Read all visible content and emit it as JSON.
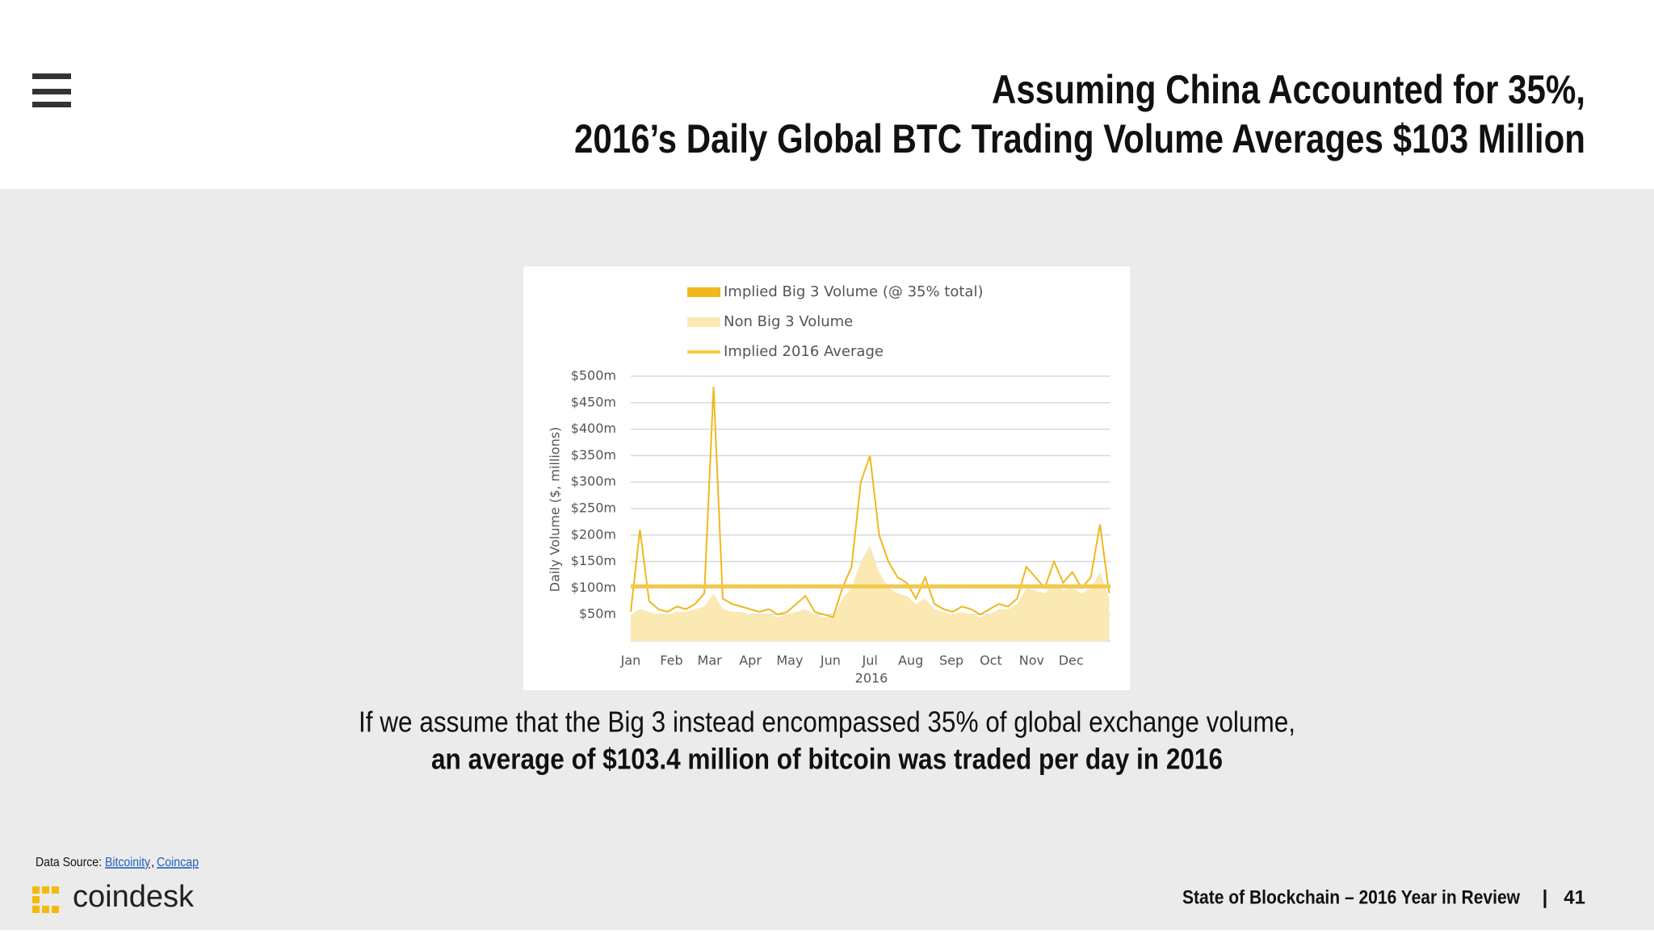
{
  "header": {
    "title_lines": [
      "Assuming China Accounted for 35%,",
      "2016’s Daily Global BTC Trading Volume Averages $103 Million"
    ]
  },
  "chart_data": {
    "type": "area",
    "x": [
      1,
      8,
      15,
      22,
      29,
      36,
      43,
      50,
      57,
      64,
      71,
      78,
      85,
      92,
      99,
      106,
      113,
      120,
      127,
      134,
      141,
      148,
      155,
      162,
      169,
      176,
      183,
      190,
      197,
      204,
      211,
      218,
      225,
      232,
      239,
      246,
      253,
      260,
      267,
      274,
      281,
      288,
      295,
      302,
      309,
      316,
      323,
      330,
      337,
      344,
      351,
      358,
      365
    ],
    "xlim": [
      1,
      366
    ],
    "xticks": [
      {
        "value": 1,
        "label": "Jan"
      },
      {
        "value": 32,
        "label": "Feb"
      },
      {
        "value": 61,
        "label": "Mar"
      },
      {
        "value": 92,
        "label": "Apr"
      },
      {
        "value": 122,
        "label": "May"
      },
      {
        "value": 153,
        "label": "Jun"
      },
      {
        "value": 183,
        "label": "Jul"
      },
      {
        "value": 214,
        "label": "Aug"
      },
      {
        "value": 245,
        "label": "Sep"
      },
      {
        "value": 275,
        "label": "Oct"
      },
      {
        "value": 306,
        "label": "Nov"
      },
      {
        "value": 336,
        "label": "Dec"
      }
    ],
    "x_label": "2016",
    "y_label": "Daily Volume ($, millions)",
    "ylim": [
      0,
      500
    ],
    "yticks": [
      {
        "value": 50,
        "label": "$50m"
      },
      {
        "value": 100,
        "label": "$100m"
      },
      {
        "value": 150,
        "label": "$150m"
      },
      {
        "value": 200,
        "label": "$200m"
      },
      {
        "value": 250,
        "label": "$250m"
      },
      {
        "value": 300,
        "label": "$300m"
      },
      {
        "value": 350,
        "label": "$350m"
      },
      {
        "value": 400,
        "label": "$400m"
      },
      {
        "value": 450,
        "label": "$450m"
      },
      {
        "value": 500,
        "label": "$500m"
      }
    ],
    "grid": true,
    "series": [
      {
        "name": "Implied Big 3 Volume (@ 35% total)",
        "color": "#f0b81c",
        "style": "line",
        "values": [
          55,
          210,
          75,
          60,
          55,
          65,
          60,
          70,
          90,
          480,
          80,
          70,
          65,
          60,
          55,
          60,
          50,
          55,
          70,
          85,
          55,
          50,
          45,
          100,
          140,
          300,
          350,
          200,
          150,
          120,
          110,
          80,
          120,
          70,
          60,
          55,
          65,
          60,
          50,
          60,
          70,
          65,
          80,
          140,
          120,
          100,
          150,
          110,
          130,
          100,
          120,
          220,
          90
        ]
      },
      {
        "name": "Non Big 3 Volume",
        "color": "#fbe9b3",
        "style": "area",
        "values": [
          50,
          60,
          55,
          50,
          50,
          55,
          55,
          60,
          65,
          90,
          60,
          55,
          55,
          50,
          50,
          50,
          45,
          50,
          55,
          60,
          50,
          45,
          45,
          80,
          100,
          150,
          180,
          130,
          100,
          90,
          85,
          70,
          80,
          60,
          55,
          50,
          55,
          50,
          45,
          50,
          60,
          60,
          70,
          100,
          95,
          90,
          110,
          95,
          100,
          90,
          100,
          130,
          80
        ]
      }
    ],
    "reference_lines": [
      {
        "name": "Implied 2016 Average",
        "value": 103,
        "color": "#f2c94c"
      }
    ]
  },
  "caption": {
    "line1": "If we assume that the Big 3 instead encompassed 35% of global exchange volume,",
    "line2": "an average of $103.4 million of bitcoin was traded per day in 2016"
  },
  "footer": {
    "source_label": "Data Source:",
    "sources": [
      "Bitcoinity",
      "Coincap"
    ],
    "separator": ",",
    "logo": "coindesk",
    "report": "State of Blockchain – 2016 Year in Review",
    "divider": "|",
    "page": "41"
  }
}
